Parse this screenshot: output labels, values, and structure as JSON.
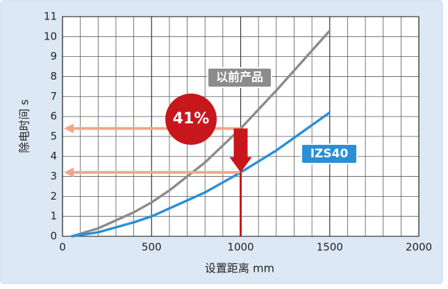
{
  "chart_data": {
    "type": "line",
    "xlabel": "设置距离 mm",
    "ylabel": "除电时间 s",
    "x": [
      50,
      200,
      400,
      500,
      600,
      800,
      1000,
      1200,
      1500
    ],
    "series": [
      {
        "name": "以前产品",
        "color": "#8c8c8c",
        "values": [
          0,
          0.4,
          1.2,
          1.7,
          2.3,
          3.7,
          5.4,
          7.3,
          10.3
        ]
      },
      {
        "name": "IZS40",
        "color": "#2a8fd6",
        "values": [
          0,
          0.2,
          0.7,
          1.0,
          1.4,
          2.2,
          3.2,
          4.3,
          6.2
        ]
      }
    ],
    "reduction": {
      "value": 41,
      "label": "41%",
      "color": "#c8161d",
      "arrow_color": "#f2a58a"
    },
    "xlim": [
      0,
      2000
    ],
    "ylim": [
      0,
      11
    ],
    "xticks": [
      0,
      500,
      1000,
      1500,
      2000
    ],
    "xgrid": [
      100,
      200,
      300,
      400,
      600,
      700,
      800,
      900,
      1100,
      1200,
      1300,
      1400,
      1600,
      1700,
      1800,
      1900
    ],
    "yticks": [
      0,
      1,
      2,
      3,
      4,
      5,
      6,
      7,
      8,
      9,
      10,
      11
    ],
    "grid": true
  }
}
